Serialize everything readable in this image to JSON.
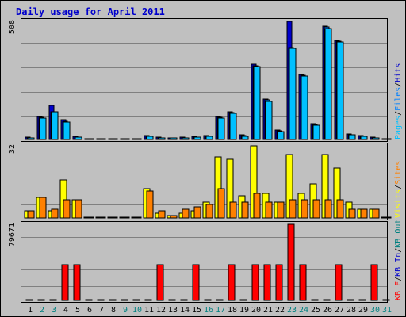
{
  "chart_data": {
    "type": "bar",
    "title": "Daily usage for April 2011",
    "categories": [
      "1",
      "2",
      "3",
      "4",
      "5",
      "6",
      "7",
      "8",
      "9",
      "10",
      "11",
      "12",
      "13",
      "14",
      "15",
      "16",
      "17",
      "18",
      "19",
      "20",
      "21",
      "22",
      "23",
      "24",
      "25",
      "26",
      "27",
      "28",
      "29",
      "30",
      "31"
    ],
    "weekend_days": [
      "2",
      "3",
      "9",
      "10",
      "16",
      "17",
      "23",
      "24",
      "30",
      "31"
    ],
    "panels": [
      {
        "name": "pages-files-hits",
        "y_max_label": "508",
        "ylim": [
          0,
          508
        ],
        "side_label": [
          "Pages",
          "Files",
          "Hits"
        ],
        "series": [
          {
            "name": "Hits",
            "color": "#0000cc",
            "values": [
              10,
              98,
              146,
              85,
              12,
              0,
              0,
              0,
              0,
              0,
              18,
              10,
              8,
              10,
              12,
              16,
              100,
              120,
              20,
              325,
              175,
              40,
              508,
              280,
              68,
              487,
              426,
              24,
              16,
              10,
              0
            ]
          },
          {
            "name": "Files",
            "color": "#0080ff",
            "values": [
              8,
              96,
              120,
              78,
              10,
              0,
              0,
              0,
              0,
              0,
              15,
              8,
              7,
              8,
              10,
              14,
              96,
              116,
              17,
              318,
              170,
              37,
              395,
              276,
              64,
              483,
              422,
              21,
              14,
              8,
              0
            ]
          },
          {
            "name": "Pages",
            "color": "#00c0ff",
            "values": [
              6,
              92,
              118,
              76,
              10,
              0,
              0,
              0,
              0,
              0,
              13,
              7,
              6,
              8,
              9,
              12,
              93,
              113,
              15,
              313,
              165,
              35,
              393,
              272,
              61,
              478,
              418,
              19,
              13,
              7,
              0
            ]
          }
        ]
      },
      {
        "name": "visits-sites",
        "y_max_label": "32",
        "ylim": [
          0,
          32
        ],
        "side_label": [
          "Visits",
          "Sites"
        ],
        "series": [
          {
            "name": "Visits",
            "color": "#ffff00",
            "values": [
              3,
              9,
              3,
              17,
              8,
              0,
              0,
              0,
              0,
              0,
              13,
              2,
              1,
              2,
              3,
              7,
              27,
              26,
              10,
              32,
              11,
              7,
              28,
              11,
              15,
              28,
              22,
              7,
              4,
              4,
              0
            ]
          },
          {
            "name": "Sites",
            "color": "#ff8000",
            "values": [
              3,
              9,
              4,
              8,
              8,
              0,
              0,
              0,
              0,
              0,
              12,
              3,
              1,
              4,
              5,
              6,
              13,
              7,
              7,
              11,
              7,
              7,
              8,
              8,
              8,
              8,
              8,
              4,
              4,
              4,
              0
            ]
          }
        ]
      },
      {
        "name": "kbytes",
        "y_max_label": "79671",
        "ylim": [
          0,
          79671
        ],
        "side_label": [
          "KB F",
          "KB In",
          "KB Out"
        ],
        "series": [
          {
            "name": "KB F",
            "color": "#ff0000",
            "values": [
              0,
              0,
              0,
              37000,
              37000,
              0,
              0,
              0,
              0,
              0,
              0,
              37000,
              0,
              0,
              37000,
              0,
              0,
              37000,
              0,
              37000,
              37000,
              37000,
              79671,
              37000,
              0,
              0,
              37000,
              0,
              0,
              37000,
              0
            ]
          }
        ]
      }
    ],
    "colors": {
      "background": "#c0c0c0",
      "grid": "#808080",
      "title": "#0000cc",
      "weekend_label": "#008080",
      "weekday_label": "#000000"
    }
  }
}
